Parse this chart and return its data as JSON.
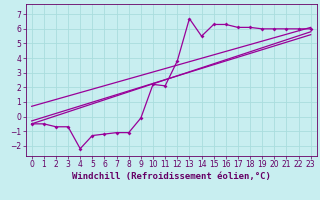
{
  "xlabel": "Windchill (Refroidissement éolien,°C)",
  "bg_color": "#c8eef0",
  "line_color": "#990099",
  "grid_color": "#aadddd",
  "xlim": [
    -0.5,
    23.5
  ],
  "ylim": [
    -2.7,
    7.7
  ],
  "xticks": [
    0,
    1,
    2,
    3,
    4,
    5,
    6,
    7,
    8,
    9,
    10,
    11,
    12,
    13,
    14,
    15,
    16,
    17,
    18,
    19,
    20,
    21,
    22,
    23
  ],
  "yticks": [
    -2,
    -1,
    0,
    1,
    2,
    3,
    4,
    5,
    6,
    7
  ],
  "data_x": [
    0,
    1,
    2,
    3,
    4,
    5,
    6,
    7,
    8,
    9,
    10,
    11,
    12,
    13,
    14,
    15,
    16,
    17,
    18,
    19,
    20,
    21,
    22,
    23
  ],
  "data_y": [
    -0.5,
    -0.5,
    -0.7,
    -0.7,
    -2.2,
    -1.3,
    -1.2,
    -1.1,
    -1.1,
    -0.1,
    2.2,
    2.1,
    3.8,
    6.7,
    5.5,
    6.3,
    6.3,
    6.1,
    6.1,
    6.0,
    6.0,
    6.0,
    6.0,
    6.0
  ],
  "trend1_x": [
    0,
    23
  ],
  "trend1_y": [
    -0.5,
    5.8
  ],
  "trend2_x": [
    0,
    23
  ],
  "trend2_y": [
    0.7,
    6.1
  ],
  "trend3_x": [
    0,
    23
  ],
  "trend3_y": [
    -0.3,
    5.6
  ],
  "axis_color": "#660066",
  "tick_color": "#660066",
  "xlabel_fontsize": 6.5,
  "tick_fontsize": 5.5
}
